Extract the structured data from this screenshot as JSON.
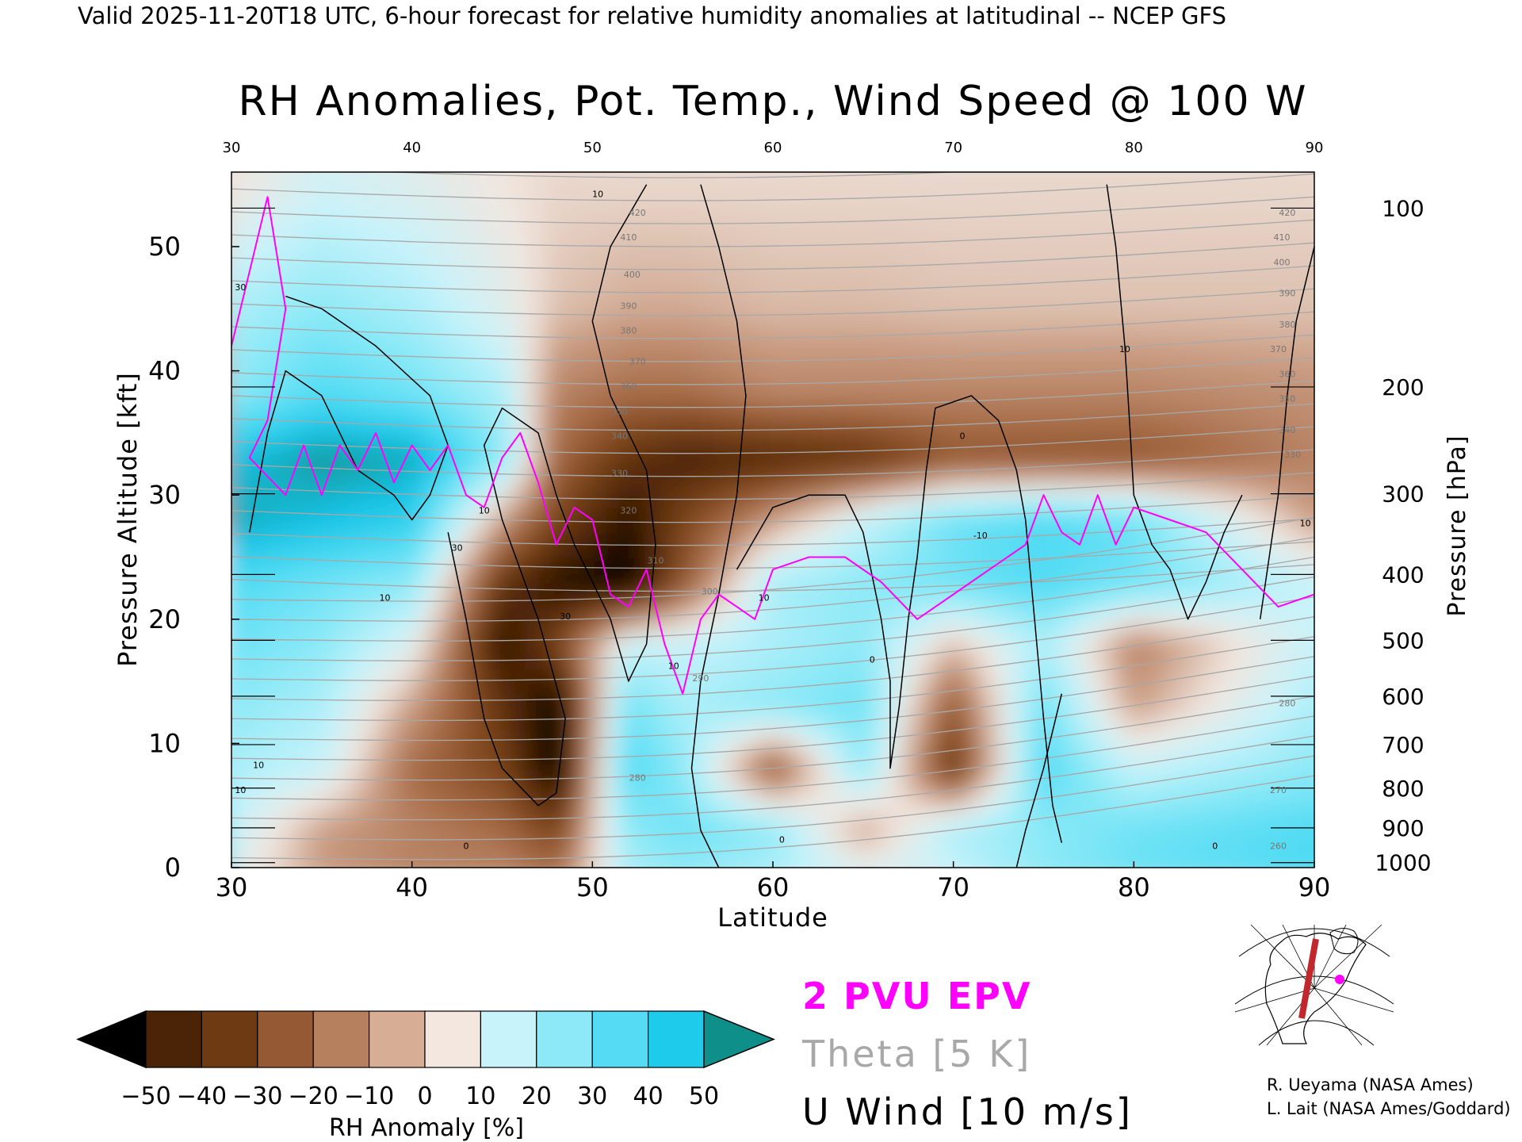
{
  "header": "Valid 2025-11-20T18 UTC, 6-hour forecast for relative humidity anomalies at latitudinal -- NCEP GFS",
  "chart_data": {
    "type": "heatmap",
    "title": "RH Anomalies, Pot. Temp., Wind Speed @ 100 W",
    "xlabel": "Latitude",
    "ylabel": "Pressure Altitude [kft]",
    "y2label": "Pressure [hPa]",
    "xlim": [
      30,
      90
    ],
    "ylim": [
      0,
      56
    ],
    "x_ticks": [
      30,
      40,
      50,
      60,
      70,
      80,
      90
    ],
    "y_ticks": [
      0,
      10,
      20,
      30,
      40,
      50
    ],
    "pressure_ticks": [
      {
        "label": "100",
        "kft": 53.1
      },
      {
        "label": "200",
        "kft": 38.7
      },
      {
        "label": "300",
        "kft": 30.1
      },
      {
        "label": "400",
        "kft": 23.6
      },
      {
        "label": "500",
        "kft": 18.3
      },
      {
        "label": "600",
        "kft": 13.8
      },
      {
        "label": "700",
        "kft": 9.9
      },
      {
        "label": "800",
        "kft": 6.4
      },
      {
        "label": "900",
        "kft": 3.2
      },
      {
        "label": "1000",
        "kft": 0.4
      }
    ],
    "colorbar": {
      "label": "RH Anomaly [%]",
      "ticks": [
        -50,
        -40,
        -30,
        -20,
        -10,
        0,
        10,
        20,
        30,
        40,
        50
      ],
      "colors": [
        "#000000",
        "#4b2306",
        "#6e3a14",
        "#955a33",
        "#b67f5e",
        "#d8ad96",
        "#f3e7df",
        "#c9f3fa",
        "#8de9f7",
        "#55dcf4",
        "#1fcbeb",
        "#0aa2c8",
        "#0e8f8a"
      ]
    },
    "legend": [
      {
        "label": "2 PVU EPV",
        "color": "#ff00ff"
      },
      {
        "label": "Theta [5 K]",
        "color": "#a8a8a8"
      },
      {
        "label": "U Wind [10 m/s]",
        "color": "#000000"
      }
    ],
    "rh_anomaly_rows": [
      {
        "kft": 55,
        "values": [
          0,
          8,
          5,
          0,
          -2,
          -2,
          -2,
          -2,
          -2,
          -2,
          -2,
          -2,
          -2
        ]
      },
      {
        "kft": 45,
        "values": [
          15,
          20,
          15,
          5,
          -5,
          -8,
          -8,
          -6,
          -6,
          -5,
          -5,
          -5,
          -5
        ]
      },
      {
        "kft": 38,
        "values": [
          20,
          30,
          25,
          15,
          -15,
          -20,
          -20,
          -15,
          -15,
          -15,
          -15,
          -15,
          -12
        ]
      },
      {
        "kft": 33,
        "values": [
          40,
          48,
          45,
          20,
          -20,
          -35,
          -40,
          -38,
          -35,
          -25,
          -25,
          -25,
          -15
        ]
      },
      {
        "kft": 28,
        "values": [
          45,
          40,
          35,
          -10,
          -30,
          -45,
          -30,
          -10,
          10,
          25,
          30,
          25,
          -10
        ]
      },
      {
        "kft": 23,
        "values": [
          30,
          25,
          20,
          -35,
          -45,
          -50,
          -25,
          15,
          20,
          25,
          30,
          25,
          10
        ]
      },
      {
        "kft": 18,
        "values": [
          25,
          20,
          5,
          -45,
          -30,
          10,
          10,
          15,
          20,
          -5,
          15,
          -15,
          10
        ]
      },
      {
        "kft": 13,
        "values": [
          20,
          15,
          -10,
          -35,
          -50,
          25,
          15,
          20,
          25,
          -25,
          25,
          -10,
          15
        ]
      },
      {
        "kft": 8,
        "values": [
          15,
          10,
          -20,
          -30,
          -50,
          30,
          20,
          -25,
          20,
          -35,
          30,
          10,
          20
        ]
      },
      {
        "kft": 3,
        "values": [
          10,
          -10,
          -15,
          -20,
          -30,
          20,
          25,
          20,
          -10,
          15,
          20,
          25,
          30
        ]
      },
      {
        "kft": 0,
        "values": [
          5,
          -10,
          -15,
          -15,
          -20,
          15,
          20,
          15,
          5,
          10,
          20,
          25,
          30
        ]
      }
    ],
    "rh_anomaly_lats": [
      30,
      35,
      40,
      45,
      48,
      52,
      55,
      60,
      65,
      70,
      75,
      80,
      90
    ],
    "theta_labels": [
      {
        "text": "420",
        "lat": 52.5,
        "kft": 52.5
      },
      {
        "text": "410",
        "lat": 52.0,
        "kft": 50.5
      },
      {
        "text": "400",
        "lat": 52.2,
        "kft": 47.5
      },
      {
        "text": "390",
        "lat": 52.0,
        "kft": 45.0
      },
      {
        "text": "380",
        "lat": 52.0,
        "kft": 43.0
      },
      {
        "text": "370",
        "lat": 52.5,
        "kft": 40.5
      },
      {
        "text": "360",
        "lat": 52.0,
        "kft": 38.5
      },
      {
        "text": "350",
        "lat": 51.5,
        "kft": 36.5
      },
      {
        "text": "340",
        "lat": 51.5,
        "kft": 34.5
      },
      {
        "text": "330",
        "lat": 51.5,
        "kft": 31.5
      },
      {
        "text": "320",
        "lat": 52.0,
        "kft": 28.5
      },
      {
        "text": "310",
        "lat": 53.5,
        "kft": 24.5
      },
      {
        "text": "300",
        "lat": 56.5,
        "kft": 22.0
      },
      {
        "text": "290",
        "lat": 56.0,
        "kft": 15.0
      },
      {
        "text": "280",
        "lat": 52.5,
        "kft": 7.0
      },
      {
        "text": "420",
        "lat": 88.5,
        "kft": 52.5
      },
      {
        "text": "410",
        "lat": 88.2,
        "kft": 50.5
      },
      {
        "text": "400",
        "lat": 88.2,
        "kft": 48.5
      },
      {
        "text": "390",
        "lat": 88.5,
        "kft": 46.0
      },
      {
        "text": "380",
        "lat": 88.5,
        "kft": 43.5
      },
      {
        "text": "370",
        "lat": 88.0,
        "kft": 41.5
      },
      {
        "text": "360",
        "lat": 88.5,
        "kft": 39.5
      },
      {
        "text": "350",
        "lat": 88.5,
        "kft": 37.5
      },
      {
        "text": "340",
        "lat": 88.5,
        "kft": 35.0
      },
      {
        "text": "330",
        "lat": 88.8,
        "kft": 33.0
      },
      {
        "text": "280",
        "lat": 88.5,
        "kft": 13.0
      },
      {
        "text": "270",
        "lat": 88.0,
        "kft": 6.0
      },
      {
        "text": "260",
        "lat": 88.0,
        "kft": 1.5
      }
    ],
    "wind_labels": [
      {
        "text": "10",
        "lat": 50.3,
        "kft": 54.0
      },
      {
        "text": "30",
        "lat": 30.5,
        "kft": 46.5
      },
      {
        "text": "10",
        "lat": 44.0,
        "kft": 28.5
      },
      {
        "text": "30",
        "lat": 42.5,
        "kft": 25.5
      },
      {
        "text": "10",
        "lat": 38.5,
        "kft": 21.5
      },
      {
        "text": "30",
        "lat": 48.5,
        "kft": 20.0
      },
      {
        "text": "10",
        "lat": 54.5,
        "kft": 16.0
      },
      {
        "text": "10",
        "lat": 59.5,
        "kft": 21.5
      },
      {
        "text": "0",
        "lat": 65.5,
        "kft": 16.5
      },
      {
        "text": "0",
        "lat": 70.5,
        "kft": 34.5
      },
      {
        "text": "10",
        "lat": 79.5,
        "kft": 41.5
      },
      {
        "text": "-10",
        "lat": 71.5,
        "kft": 26.5
      },
      {
        "text": "10",
        "lat": 89.5,
        "kft": 27.5
      },
      {
        "text": "10",
        "lat": 31.5,
        "kft": 8.0
      },
      {
        "text": "10",
        "lat": 30.5,
        "kft": 6.0
      },
      {
        "text": "0",
        "lat": 43.0,
        "kft": 1.5
      },
      {
        "text": "0",
        "lat": 60.5,
        "kft": 2.0
      },
      {
        "text": "0",
        "lat": 84.5,
        "kft": 1.5
      }
    ],
    "epv_2pvu": [
      [
        30,
        42
      ],
      [
        31,
        48
      ],
      [
        32,
        54
      ],
      [
        33,
        45
      ],
      [
        32,
        36
      ],
      [
        31,
        33
      ],
      [
        33,
        30
      ],
      [
        34,
        34
      ],
      [
        35,
        30
      ],
      [
        36,
        34
      ],
      [
        37,
        32
      ],
      [
        38,
        35
      ],
      [
        39,
        31
      ],
      [
        40,
        34
      ],
      [
        41,
        32
      ],
      [
        42,
        34
      ],
      [
        43,
        30
      ],
      [
        44,
        29
      ],
      [
        45,
        33
      ],
      [
        46,
        35
      ],
      [
        47,
        31
      ],
      [
        48,
        26
      ],
      [
        49,
        29
      ],
      [
        50,
        28
      ],
      [
        51,
        22
      ],
      [
        52,
        21
      ],
      [
        53,
        24
      ],
      [
        54,
        18
      ],
      [
        55,
        14
      ],
      [
        56,
        20
      ],
      [
        57,
        22
      ],
      [
        58,
        21
      ],
      [
        59,
        20
      ],
      [
        60,
        24
      ],
      [
        62,
        25
      ],
      [
        64,
        25
      ],
      [
        66,
        23
      ],
      [
        68,
        20
      ],
      [
        70,
        22
      ],
      [
        72,
        24
      ],
      [
        74,
        26
      ],
      [
        75,
        30
      ],
      [
        76,
        27
      ],
      [
        77,
        26
      ],
      [
        78,
        30
      ],
      [
        79,
        26
      ],
      [
        80,
        29
      ],
      [
        82,
        28
      ],
      [
        84,
        27
      ],
      [
        86,
        24
      ],
      [
        88,
        21
      ],
      [
        90,
        22
      ]
    ],
    "u_wind_contours": [
      [
        [
          31,
          27
        ],
        [
          32,
          35
        ],
        [
          33,
          40
        ],
        [
          35,
          38
        ],
        [
          37,
          32
        ],
        [
          39,
          30
        ],
        [
          40,
          28
        ],
        [
          41,
          30
        ],
        [
          42,
          34
        ],
        [
          41,
          38
        ],
        [
          38,
          42
        ],
        [
          35,
          45
        ],
        [
          33,
          46
        ]
      ],
      [
        [
          42,
          27
        ],
        [
          43,
          20
        ],
        [
          44,
          12
        ],
        [
          45,
          8
        ],
        [
          47,
          5
        ],
        [
          48,
          6
        ],
        [
          48.5,
          12
        ],
        [
          47,
          20
        ],
        [
          45,
          28
        ],
        [
          44,
          34
        ],
        [
          45,
          37
        ],
        [
          47,
          35
        ],
        [
          48,
          30
        ],
        [
          49,
          26
        ],
        [
          51,
          20
        ],
        [
          52,
          15
        ],
        [
          53,
          18
        ],
        [
          53.5,
          26
        ],
        [
          53,
          32
        ],
        [
          51,
          38
        ],
        [
          50,
          44
        ],
        [
          51,
          50
        ],
        [
          53,
          55
        ]
      ],
      [
        [
          56,
          55
        ],
        [
          57,
          50
        ],
        [
          58,
          44
        ],
        [
          58.5,
          38
        ],
        [
          58,
          30
        ],
        [
          57,
          22
        ],
        [
          56,
          15
        ],
        [
          55.5,
          8
        ],
        [
          56,
          3
        ],
        [
          57,
          0
        ]
      ],
      [
        [
          58,
          24
        ],
        [
          60,
          29
        ],
        [
          62,
          30
        ],
        [
          64,
          30
        ],
        [
          65,
          27
        ],
        [
          66,
          20
        ],
        [
          66.5,
          15
        ],
        [
          66.5,
          8
        ],
        [
          67,
          13
        ],
        [
          67.5,
          20
        ],
        [
          68,
          25
        ],
        [
          68.5,
          32
        ],
        [
          69,
          37
        ],
        [
          71,
          38
        ],
        [
          72.5,
          36
        ],
        [
          73.5,
          32
        ],
        [
          74,
          28
        ],
        [
          74.5,
          20
        ],
        [
          75,
          12
        ],
        [
          75.5,
          5
        ],
        [
          76,
          2
        ]
      ],
      [
        [
          78.5,
          55
        ],
        [
          79,
          50
        ],
        [
          79.5,
          42
        ],
        [
          79.8,
          35
        ],
        [
          80,
          30
        ],
        [
          81,
          26
        ],
        [
          82,
          24
        ],
        [
          82.5,
          22
        ],
        [
          83,
          20
        ],
        [
          84,
          23
        ],
        [
          85,
          27
        ],
        [
          86,
          30
        ]
      ],
      [
        [
          76,
          14
        ],
        [
          75,
          8
        ],
        [
          74,
          3
        ],
        [
          73.5,
          0
        ]
      ],
      [
        [
          87,
          20
        ],
        [
          88,
          30
        ],
        [
          88.5,
          38
        ],
        [
          89,
          44
        ],
        [
          90,
          50
        ]
      ]
    ]
  },
  "credits": [
    "R. Ueyama (NASA Ames)",
    "L. Lait (NASA Ames/Goddard)"
  ],
  "map_inset": {
    "icon": "polar-map-icon",
    "transect_color": "#c0282e",
    "marker_color": "#ff00ff"
  }
}
